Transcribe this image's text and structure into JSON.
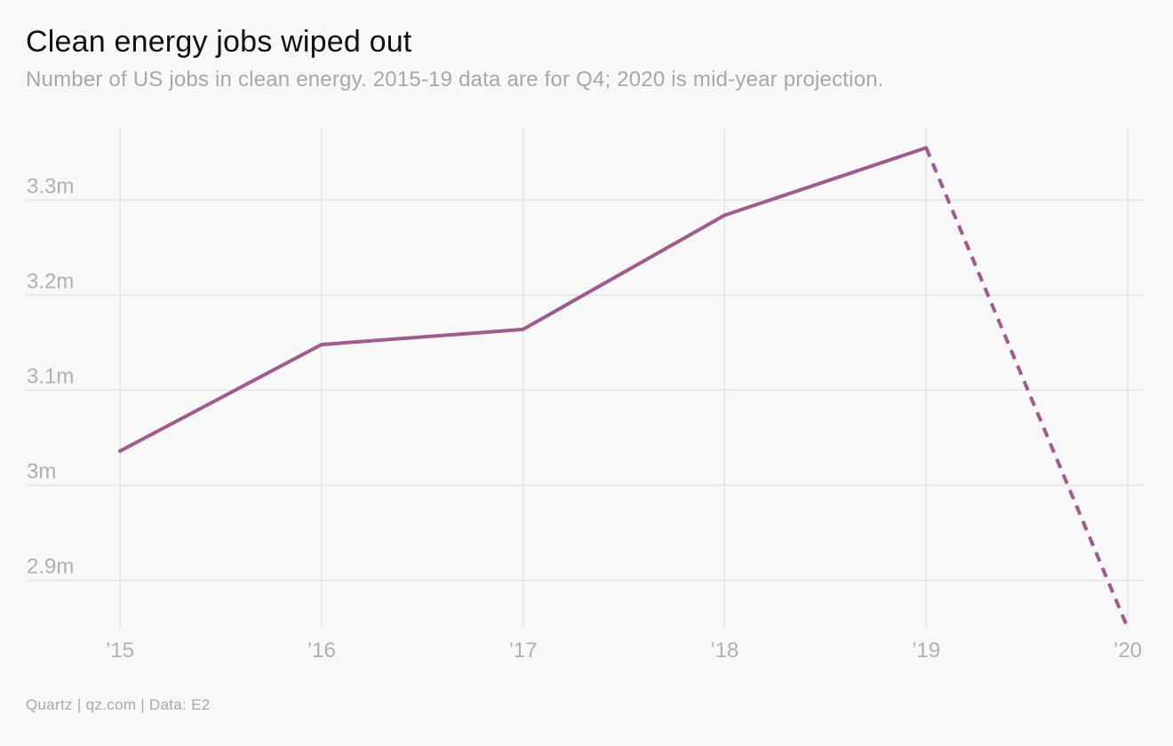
{
  "header": {
    "title": "Clean energy jobs wiped out",
    "subtitle": "Number of US jobs in clean energy. 2015-19 data are for Q4; 2020 is mid-year projection."
  },
  "footer": {
    "source": "Quartz | qz.com | Data: E2"
  },
  "colors": {
    "line": "#a05a8c",
    "grid": "#e4e4e4",
    "tick_text": "#b0b0b0",
    "background": "#f8f8f8"
  },
  "chart_data": {
    "type": "line",
    "title": "Clean energy jobs wiped out",
    "subtitle": "Number of US jobs in clean energy. 2015-19 data are for Q4; 2020 is mid-year projection.",
    "xlabel": "",
    "ylabel": "",
    "x": [
      2015,
      2016,
      2017,
      2018,
      2019,
      2020
    ],
    "x_tick_labels": [
      "’15",
      "’16",
      "’17",
      "’18",
      "’19",
      "’20"
    ],
    "series": [
      {
        "values": [
          3.036,
          3.148,
          3.164,
          3.284,
          3.355,
          2.85
        ],
        "unit": "m",
        "projected_from_index": 4
      }
    ],
    "y_ticks": [
      2.9,
      3.0,
      3.1,
      3.2,
      3.3
    ],
    "y_tick_labels": [
      "2.9m",
      "3m",
      "3.1m",
      "3.2m",
      "3.3m"
    ],
    "ylim": [
      2.85,
      3.375
    ],
    "grid": true,
    "legend": "none"
  }
}
